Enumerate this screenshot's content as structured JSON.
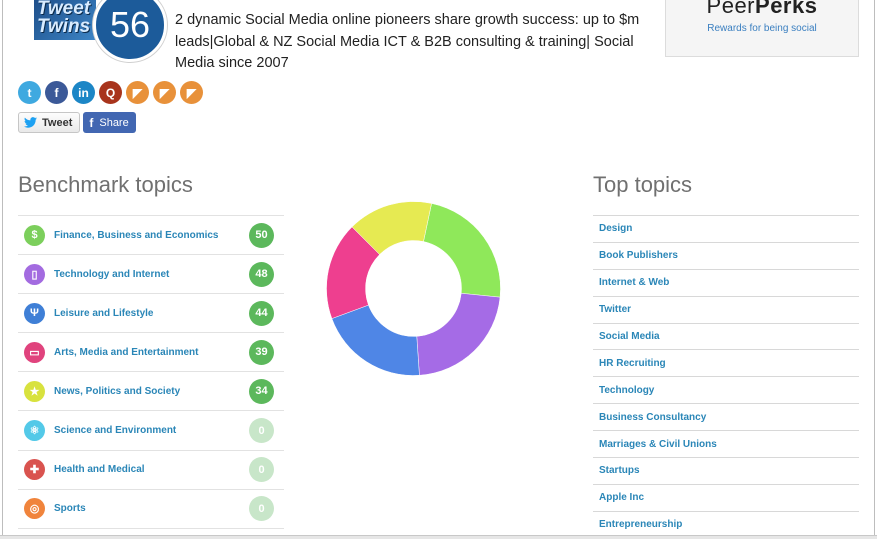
{
  "header": {
    "avatar_text": "Tweet\nTwins",
    "score": "56",
    "bio": "2 dynamic Social Media online pioneers share growth success: up to $m leads|Global & NZ Social Media ICT & B2B consulting & training| Social Media since 2007"
  },
  "perks": {
    "logo_peer": "Peer",
    "logo_perks": "Perks",
    "tagline": "Rewards for being social"
  },
  "social_icons": [
    {
      "name": "twitter-icon",
      "glyph": "t",
      "color": "#3fa9e0"
    },
    {
      "name": "facebook-icon",
      "glyph": "f",
      "color": "#3b5998"
    },
    {
      "name": "linkedin-icon",
      "glyph": "in",
      "color": "#1c86c6"
    },
    {
      "name": "klout-icon",
      "glyph": "Q",
      "color": "#a8341c"
    },
    {
      "name": "rss-icon",
      "glyph": "◤",
      "color": "#e8913a"
    },
    {
      "name": "rss-icon",
      "glyph": "◤",
      "color": "#e8913a"
    },
    {
      "name": "rss-icon",
      "glyph": "◤",
      "color": "#e8913a"
    }
  ],
  "share": {
    "tweet_label": "Tweet",
    "share_label": "Share"
  },
  "benchmark": {
    "title": "Benchmark topics",
    "items": [
      {
        "label": "Finance, Business and Economics",
        "score": "50",
        "icon": "dollar-icon",
        "glyph": "$",
        "icon_color": "#7ccf5c",
        "score_color": "#5cb85c"
      },
      {
        "label": "Technology and Internet",
        "score": "48",
        "icon": "phone-icon",
        "glyph": "▯",
        "icon_color": "#a36be0",
        "score_color": "#5cb85c"
      },
      {
        "label": "Leisure and Lifestyle",
        "score": "44",
        "icon": "lifestyle-icon",
        "glyph": "Ψ",
        "icon_color": "#3f7fd6",
        "score_color": "#5cb85c"
      },
      {
        "label": "Arts, Media and Entertainment",
        "score": "39",
        "icon": "monitor-icon",
        "glyph": "▭",
        "icon_color": "#e0437d",
        "score_color": "#5cb85c"
      },
      {
        "label": "News, Politics and Society",
        "score": "34",
        "icon": "star-icon",
        "glyph": "★",
        "icon_color": "#d8e23e",
        "score_color": "#5cb85c"
      },
      {
        "label": "Science and Environment",
        "score": "0",
        "icon": "atom-icon",
        "glyph": "⚛",
        "icon_color": "#53c9e8",
        "score_color": "#c8e6c9"
      },
      {
        "label": "Health and Medical",
        "score": "0",
        "icon": "cross-icon",
        "glyph": "✚",
        "icon_color": "#d9534f",
        "score_color": "#c8e6c9"
      },
      {
        "label": "Sports",
        "score": "0",
        "icon": "sports-icon",
        "glyph": "◎",
        "icon_color": "#f0843c",
        "score_color": "#c8e6c9"
      }
    ]
  },
  "top_topics": {
    "title": "Top topics",
    "items": [
      "Design",
      "Book Publishers",
      "Internet & Web",
      "Twitter",
      "Social Media",
      "HR Recruiting",
      "Technology",
      "Business Consultancy",
      "Marriages & Civil Unions",
      "Startups",
      "Apple Inc",
      "Entrepreneurship"
    ]
  },
  "chart_data": {
    "type": "pie",
    "donut": true,
    "categories": [
      "Finance, Business and Economics",
      "Technology and Internet",
      "Leisure and Lifestyle",
      "Arts, Media and Entertainment",
      "News, Politics and Society"
    ],
    "values": [
      50,
      48,
      44,
      39,
      34
    ],
    "colors": [
      "#8fe85a",
      "#a56be6",
      "#4f86e6",
      "#ee3f8f",
      "#e6ea52"
    ],
    "start_angle_deg": -78
  }
}
